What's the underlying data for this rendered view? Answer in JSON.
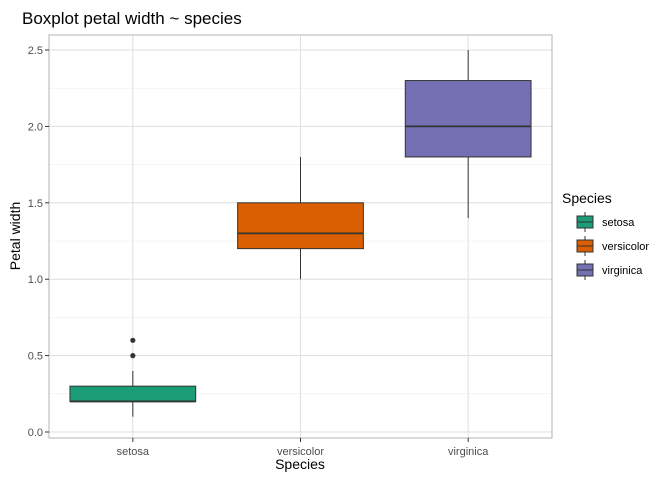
{
  "chart_data": {
    "type": "boxplot",
    "title": "Boxplot petal width ~ species",
    "xlabel": "Species",
    "ylabel": "Petal width",
    "ylim": [
      0,
      2.5
    ],
    "yticks": [
      "0.0",
      "0.5",
      "1.0",
      "1.5",
      "2.0",
      "2.5"
    ],
    "categories": [
      "setosa",
      "versicolor",
      "virginica"
    ],
    "series": [
      {
        "name": "setosa",
        "color": "#1b9e77",
        "whisker_low": 0.1,
        "q1": 0.2,
        "median": 0.2,
        "q3": 0.3,
        "whisker_high": 0.4,
        "outliers": [
          0.5,
          0.6
        ]
      },
      {
        "name": "versicolor",
        "color": "#d95f02",
        "whisker_low": 1.0,
        "q1": 1.2,
        "median": 1.3,
        "q3": 1.5,
        "whisker_high": 1.8,
        "outliers": []
      },
      {
        "name": "virginica",
        "color": "#7570b3",
        "whisker_low": 1.4,
        "q1": 1.8,
        "median": 2.0,
        "q3": 2.3,
        "whisker_high": 2.5,
        "outliers": []
      }
    ],
    "grid": true,
    "legend": {
      "title": "Species",
      "position": "right"
    }
  }
}
